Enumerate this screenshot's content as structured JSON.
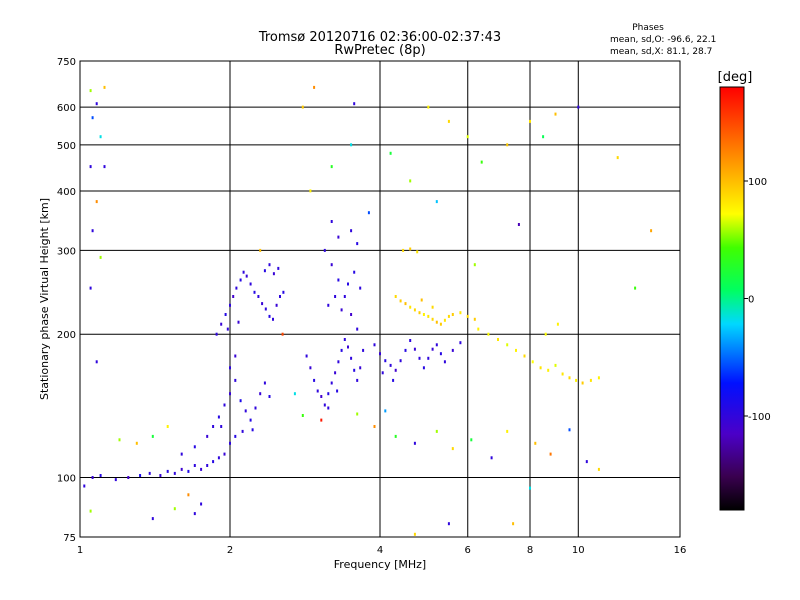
{
  "chart_data": {
    "type": "scatter",
    "title": "Tromsø 20120716 02:36:00-02:37:43",
    "subtitle": "RwPretec (8p)",
    "xlabel": "Frequency [MHz]",
    "ylabel": "Stationary phase Virtual Height [km]",
    "x_scale": "log",
    "y_scale": "log",
    "xlim": [
      1,
      16
    ],
    "ylim": [
      75,
      750
    ],
    "x_ticks": [
      1,
      2,
      4,
      6,
      8,
      10,
      16
    ],
    "y_ticks": [
      75,
      100,
      200,
      300,
      400,
      500,
      600,
      750
    ],
    "x_tick_labels": [
      "1",
      "2",
      "4",
      "6",
      "8",
      "10",
      "16"
    ],
    "y_tick_labels": [
      "75",
      "100",
      "200",
      "300",
      "400",
      "500",
      "600",
      "750"
    ],
    "grid": true,
    "stats": {
      "title": "Phases",
      "line_o": "mean, sd,O: -96.6, 22.1",
      "line_x": "mean, sd,X:  81.1, 28.7"
    },
    "colorbar": {
      "label": "[deg]",
      "range": [
        -180,
        180
      ],
      "ticks": [
        100,
        0,
        -100
      ],
      "tick_labels": [
        "100",
        "0",
        "-100"
      ]
    },
    "series": [
      {
        "value_unit": "deg",
        "points": [
          [
            1.02,
            96,
            -100
          ],
          [
            1.06,
            100,
            -105
          ],
          [
            1.1,
            101,
            -95
          ],
          [
            1.18,
            99,
            -100
          ],
          [
            1.25,
            100,
            -110
          ],
          [
            1.32,
            101,
            -90
          ],
          [
            1.38,
            102,
            -100
          ],
          [
            1.45,
            101,
            -105
          ],
          [
            1.5,
            103,
            -95
          ],
          [
            1.55,
            102,
            -100
          ],
          [
            1.6,
            104,
            -108
          ],
          [
            1.65,
            103,
            -92
          ],
          [
            1.7,
            106,
            -100
          ],
          [
            1.75,
            104,
            -105
          ],
          [
            1.8,
            106,
            -100
          ],
          [
            1.85,
            108,
            -95
          ],
          [
            1.9,
            110,
            -100
          ],
          [
            1.95,
            112,
            -105
          ],
          [
            2.0,
            118,
            -100
          ],
          [
            2.05,
            122,
            -95
          ],
          [
            1.6,
            112,
            -100
          ],
          [
            1.7,
            116,
            -95
          ],
          [
            1.8,
            122,
            -105
          ],
          [
            1.85,
            128,
            -100
          ],
          [
            1.9,
            134,
            -95
          ],
          [
            1.95,
            142,
            -100
          ],
          [
            2.0,
            150,
            -105
          ],
          [
            2.05,
            160,
            -100
          ],
          [
            2.1,
            145,
            -90
          ],
          [
            2.15,
            138,
            -100
          ],
          [
            2.2,
            132,
            -95
          ],
          [
            2.25,
            140,
            -100
          ],
          [
            2.3,
            150,
            -105
          ],
          [
            2.35,
            158,
            -100
          ],
          [
            2.4,
            148,
            -95
          ],
          [
            2.0,
            170,
            -100
          ],
          [
            2.05,
            180,
            -105
          ],
          [
            1.92,
            128,
            -100
          ],
          [
            2.12,
            125,
            -100
          ],
          [
            2.22,
            126,
            -95
          ],
          [
            1.88,
            200,
            -100
          ],
          [
            1.92,
            210,
            -105
          ],
          [
            1.96,
            220,
            -95
          ],
          [
            2.0,
            230,
            -100
          ],
          [
            2.03,
            240,
            -110
          ],
          [
            2.06,
            250,
            -100
          ],
          [
            2.1,
            260,
            -95
          ],
          [
            2.13,
            270,
            -100
          ],
          [
            2.16,
            265,
            -105
          ],
          [
            2.2,
            255,
            -100
          ],
          [
            2.24,
            245,
            -95
          ],
          [
            2.28,
            240,
            -100
          ],
          [
            2.32,
            232,
            -105
          ],
          [
            2.36,
            226,
            -100
          ],
          [
            2.4,
            218,
            -95
          ],
          [
            2.44,
            215,
            -100
          ],
          [
            2.48,
            230,
            -105
          ],
          [
            2.52,
            240,
            -100
          ],
          [
            2.56,
            245,
            -95
          ],
          [
            2.5,
            275,
            -100
          ],
          [
            2.45,
            268,
            -105
          ],
          [
            2.4,
            280,
            -100
          ],
          [
            2.35,
            272,
            -95
          ],
          [
            1.98,
            205,
            -100
          ],
          [
            2.08,
            212,
            -105
          ],
          [
            2.85,
            180,
            -100
          ],
          [
            2.9,
            170,
            -105
          ],
          [
            2.95,
            160,
            -95
          ],
          [
            3.0,
            152,
            -100
          ],
          [
            3.05,
            148,
            -110
          ],
          [
            3.1,
            142,
            -100
          ],
          [
            3.15,
            150,
            -95
          ],
          [
            3.2,
            158,
            -100
          ],
          [
            3.25,
            166,
            -105
          ],
          [
            3.3,
            175,
            -100
          ],
          [
            3.35,
            185,
            -95
          ],
          [
            3.4,
            195,
            -100
          ],
          [
            3.45,
            188,
            -105
          ],
          [
            3.5,
            178,
            -100
          ],
          [
            3.55,
            168,
            -95
          ],
          [
            3.6,
            160,
            -100
          ],
          [
            3.65,
            170,
            -105
          ],
          [
            3.7,
            185,
            -100
          ],
          [
            3.15,
            140,
            -100
          ],
          [
            3.28,
            152,
            -95
          ],
          [
            3.1,
            300,
            -100
          ],
          [
            3.2,
            280,
            -105
          ],
          [
            3.3,
            260,
            -95
          ],
          [
            3.4,
            240,
            -100
          ],
          [
            3.5,
            220,
            -110
          ],
          [
            3.6,
            205,
            -100
          ],
          [
            3.45,
            255,
            -95
          ],
          [
            3.25,
            240,
            -100
          ],
          [
            3.35,
            225,
            -105
          ],
          [
            3.15,
            230,
            -100
          ],
          [
            3.55,
            270,
            -95
          ],
          [
            3.65,
            250,
            -100
          ],
          [
            3.3,
            320,
            -105
          ],
          [
            3.5,
            330,
            -100
          ],
          [
            3.6,
            310,
            -95
          ],
          [
            3.2,
            345,
            -100
          ],
          [
            3.9,
            190,
            -100
          ],
          [
            4.0,
            182,
            -105
          ],
          [
            4.1,
            176,
            -95
          ],
          [
            4.2,
            172,
            -100
          ],
          [
            4.3,
            168,
            -110
          ],
          [
            4.4,
            176,
            -100
          ],
          [
            4.5,
            185,
            -95
          ],
          [
            4.6,
            194,
            -100
          ],
          [
            4.7,
            186,
            -105
          ],
          [
            4.8,
            178,
            -100
          ],
          [
            4.9,
            170,
            -95
          ],
          [
            5.0,
            178,
            -100
          ],
          [
            5.1,
            186,
            -105
          ],
          [
            5.2,
            190,
            -100
          ],
          [
            5.3,
            182,
            -95
          ],
          [
            5.4,
            175,
            -100
          ],
          [
            5.6,
            185,
            -105
          ],
          [
            5.8,
            192,
            -100
          ],
          [
            4.05,
            166,
            -100
          ],
          [
            4.25,
            160,
            -95
          ],
          [
            4.3,
            240,
            90
          ],
          [
            4.4,
            235,
            95
          ],
          [
            4.5,
            232,
            100
          ],
          [
            4.6,
            228,
            85
          ],
          [
            4.7,
            225,
            90
          ],
          [
            4.8,
            222,
            95
          ],
          [
            4.9,
            220,
            80
          ],
          [
            5.0,
            218,
            85
          ],
          [
            5.1,
            215,
            90
          ],
          [
            5.2,
            212,
            100
          ],
          [
            5.3,
            210,
            95
          ],
          [
            5.4,
            214,
            85
          ],
          [
            5.5,
            218,
            90
          ],
          [
            5.6,
            220,
            95
          ],
          [
            5.8,
            222,
            85
          ],
          [
            6.0,
            218,
            90
          ],
          [
            6.2,
            215,
            95
          ],
          [
            4.45,
            300,
            90
          ],
          [
            4.6,
            302,
            95
          ],
          [
            4.75,
            298,
            85
          ],
          [
            5.1,
            228,
            90
          ],
          [
            4.85,
            236,
            100
          ],
          [
            6.3,
            205,
            80
          ],
          [
            6.6,
            200,
            75
          ],
          [
            6.9,
            195,
            85
          ],
          [
            7.2,
            190,
            70
          ],
          [
            7.5,
            185,
            80
          ],
          [
            7.8,
            180,
            90
          ],
          [
            8.1,
            175,
            75
          ],
          [
            8.4,
            170,
            85
          ],
          [
            8.7,
            168,
            80
          ],
          [
            9.0,
            172,
            70
          ],
          [
            9.3,
            165,
            85
          ],
          [
            9.6,
            162,
            90
          ],
          [
            9.9,
            160,
            80
          ],
          [
            10.2,
            158,
            95
          ],
          [
            10.6,
            160,
            85
          ],
          [
            11.0,
            162,
            80
          ],
          [
            8.6,
            200,
            75
          ],
          [
            9.1,
            210,
            80
          ],
          [
            5.0,
            600,
            80
          ],
          [
            5.5,
            560,
            90
          ],
          [
            6.0,
            520,
            70
          ],
          [
            4.2,
            480,
            20
          ],
          [
            3.5,
            500,
            -20
          ],
          [
            3.2,
            450,
            30
          ],
          [
            2.9,
            400,
            80
          ],
          [
            2.8,
            600,
            95
          ],
          [
            8.0,
            560,
            85
          ],
          [
            8.5,
            520,
            10
          ],
          [
            9.0,
            580,
            100
          ],
          [
            3.8,
            360,
            -60
          ],
          [
            4.6,
            420,
            60
          ],
          [
            5.2,
            380,
            -30
          ],
          [
            6.4,
            460,
            40
          ],
          [
            7.2,
            500,
            95
          ],
          [
            10.0,
            600,
            -100
          ],
          [
            12.0,
            470,
            90
          ],
          [
            14.0,
            330,
            110
          ],
          [
            13.0,
            250,
            40
          ],
          [
            7.6,
            340,
            -120
          ],
          [
            6.2,
            280,
            60
          ],
          [
            2.95,
            660,
            120
          ],
          [
            3.55,
            610,
            -100
          ],
          [
            1.05,
            650,
            60
          ],
          [
            1.08,
            610,
            -100
          ],
          [
            1.06,
            570,
            -60
          ],
          [
            1.1,
            520,
            -20
          ],
          [
            1.05,
            450,
            -100
          ],
          [
            1.08,
            380,
            120
          ],
          [
            1.06,
            330,
            -100
          ],
          [
            1.1,
            290,
            60
          ],
          [
            1.05,
            250,
            -100
          ],
          [
            1.08,
            175,
            -100
          ],
          [
            1.05,
            85,
            60
          ],
          [
            1.12,
            660,
            100
          ],
          [
            1.12,
            450,
            -100
          ],
          [
            1.2,
            120,
            60
          ],
          [
            1.3,
            118,
            100
          ],
          [
            1.4,
            122,
            20
          ],
          [
            1.5,
            128,
            80
          ],
          [
            1.55,
            86,
            60
          ],
          [
            1.7,
            84,
            -100
          ],
          [
            1.65,
            92,
            120
          ],
          [
            1.4,
            82,
            -100
          ],
          [
            1.75,
            88,
            -100
          ],
          [
            2.3,
            300,
            100
          ],
          [
            2.55,
            200,
            150
          ],
          [
            2.7,
            150,
            -20
          ],
          [
            2.8,
            135,
            40
          ],
          [
            3.05,
            132,
            170
          ],
          [
            3.6,
            136,
            60
          ],
          [
            3.9,
            128,
            120
          ],
          [
            4.1,
            138,
            -40
          ],
          [
            4.3,
            122,
            30
          ],
          [
            4.7,
            118,
            -100
          ],
          [
            5.2,
            125,
            60
          ],
          [
            5.6,
            115,
            90
          ],
          [
            6.1,
            120,
            20
          ],
          [
            6.7,
            110,
            -100
          ],
          [
            7.2,
            125,
            80
          ],
          [
            8.2,
            118,
            100
          ],
          [
            8.8,
            112,
            130
          ],
          [
            9.6,
            126,
            -60
          ],
          [
            10.4,
            108,
            -100
          ],
          [
            11.0,
            104,
            90
          ],
          [
            8.0,
            95,
            -20
          ],
          [
            7.4,
            80,
            100
          ],
          [
            5.5,
            80,
            -100
          ],
          [
            4.7,
            76,
            90
          ]
        ]
      }
    ]
  }
}
